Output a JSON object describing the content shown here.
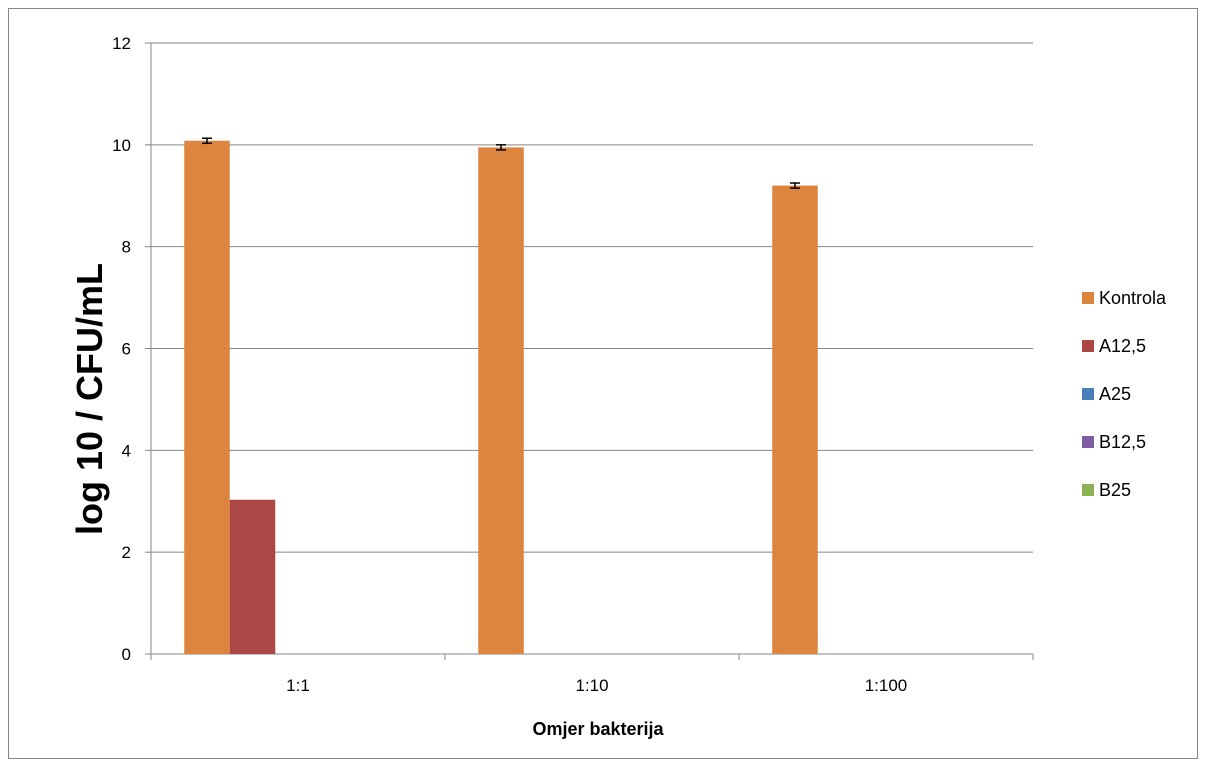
{
  "chart_data": {
    "type": "bar",
    "title": "",
    "xlabel": "Omjer bakterija",
    "ylabel": "log 10 / CFU/mL",
    "categories": [
      "1:1",
      "1:10",
      "1:100"
    ],
    "ylim": [
      0,
      12
    ],
    "yticks": [
      "0",
      "2",
      "4",
      "6",
      "8",
      "10",
      "12"
    ],
    "grid": "horizontal",
    "legend_position": "right",
    "series": [
      {
        "name": "Kontrola",
        "color": "#DD843F",
        "values": [
          10.08,
          9.95,
          9.2
        ],
        "error": [
          0.05,
          0.05,
          0.05
        ]
      },
      {
        "name": "A12,5",
        "color": "#AC4746",
        "values": [
          3.03,
          0,
          0
        ],
        "error": [
          0,
          0,
          0
        ]
      },
      {
        "name": "A25",
        "color": "#4A7EBB",
        "values": [
          0,
          0,
          0
        ],
        "error": [
          0,
          0,
          0
        ]
      },
      {
        "name": "B12,5",
        "color": "#7E5FA1",
        "values": [
          0,
          0,
          0
        ],
        "error": [
          0,
          0,
          0
        ]
      },
      {
        "name": "B25",
        "color": "#8DB154",
        "values": [
          0,
          0,
          0
        ],
        "error": [
          0,
          0,
          0
        ]
      }
    ]
  }
}
